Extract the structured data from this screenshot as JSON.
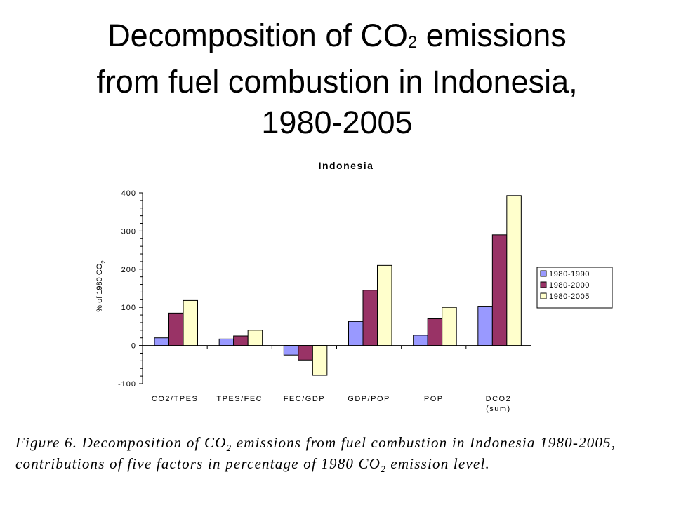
{
  "slide": {
    "title_line1_pre": "Decomposition of CO",
    "title_line1_sub": "2",
    "title_line1_post": " emissions",
    "title_line2": "from fuel combustion in Indonesia,",
    "title_line3": "1980-2005"
  },
  "caption": {
    "line1_pre": "Figure 6. Decomposition of CO",
    "line1_sub": "2",
    "line1_post": " emissions from fuel combustion in Indonesia 1980-2005,",
    "line2_pre": "contributions of five factors in percentage of 1980 CO",
    "line2_sub": "2",
    "line2_post": " emission level."
  },
  "chart_data": {
    "type": "bar",
    "title": "Indonesia",
    "ylabel": "% of 1980 CO2",
    "ylim": [
      -100,
      400
    ],
    "yticks": [
      -100,
      0,
      100,
      200,
      300,
      400
    ],
    "grid": false,
    "legend_position": "right",
    "categories": [
      "CO2/TPES",
      "TPES/FEC",
      "FEC/GDP",
      "GDP/POP",
      "POP",
      "DCO2 (sum)"
    ],
    "category_labels": [
      [
        "CO2/TPES"
      ],
      [
        "TPES/FEC"
      ],
      [
        "FEC/GDP"
      ],
      [
        "GDP/POP"
      ],
      [
        "POP"
      ],
      [
        "DCO2",
        "(sum)"
      ]
    ],
    "series": [
      {
        "name": "1980-1990",
        "color": "#9999ff",
        "values": [
          20,
          17,
          -25,
          63,
          27,
          103
        ]
      },
      {
        "name": "1980-2000",
        "color": "#993366",
        "values": [
          85,
          25,
          -38,
          145,
          70,
          290
        ]
      },
      {
        "name": "1980-2005",
        "color": "#ffffcc",
        "values": [
          118,
          40,
          -78,
          210,
          100,
          393
        ]
      }
    ]
  }
}
